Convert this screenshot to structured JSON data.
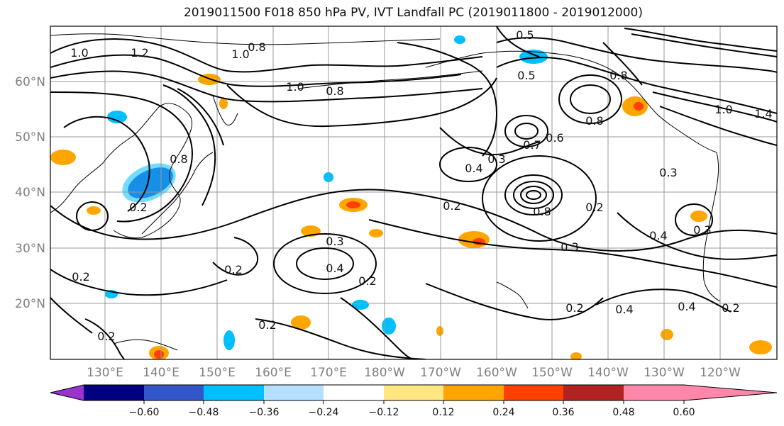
{
  "title": "2019011500 F018 850 hPa PV, IVT Landfall PC (2019011800 - 2019012000)",
  "map": {
    "lat_labels": [
      "60°N",
      "50°N",
      "40°N",
      "30°N",
      "20°N"
    ],
    "lon_labels": [
      "130°E",
      "140°E",
      "150°E",
      "160°E",
      "170°E",
      "180°W",
      "170°W",
      "160°W",
      "150°W",
      "140°W",
      "130°W",
      "120°W"
    ],
    "contour_labels": [
      "1.0",
      "1.2",
      "1.0",
      "0.8",
      "0.5",
      "0.5",
      "0.8",
      "1.0",
      "0.8",
      "0.8",
      "0.7",
      "0.6",
      "1.0",
      "1.4",
      "0.3",
      "0.4",
      "0.3",
      "0.2",
      "0.2",
      "0.3",
      "0.4",
      "0.3",
      "0.4",
      "0.2",
      "0.2",
      "0.2",
      "0.4",
      "0.4",
      "0.2",
      "0.2",
      "0.2",
      "0.2",
      "0.2",
      "0.3",
      "0.8",
      "0.8"
    ]
  },
  "colorbar": {
    "colors": [
      "#9933cc",
      "#000080",
      "#3355cc",
      "#00bfff",
      "#b3e0ff",
      "#ffffff",
      "#ffe680",
      "#ffa500",
      "#ff4000",
      "#b22222",
      "#ff88aa"
    ],
    "tick_labels": [
      "−0.60",
      "−0.48",
      "−0.36",
      "−0.24",
      "−0.12",
      "0.12",
      "0.24",
      "0.36",
      "0.48",
      "0.60"
    ]
  }
}
